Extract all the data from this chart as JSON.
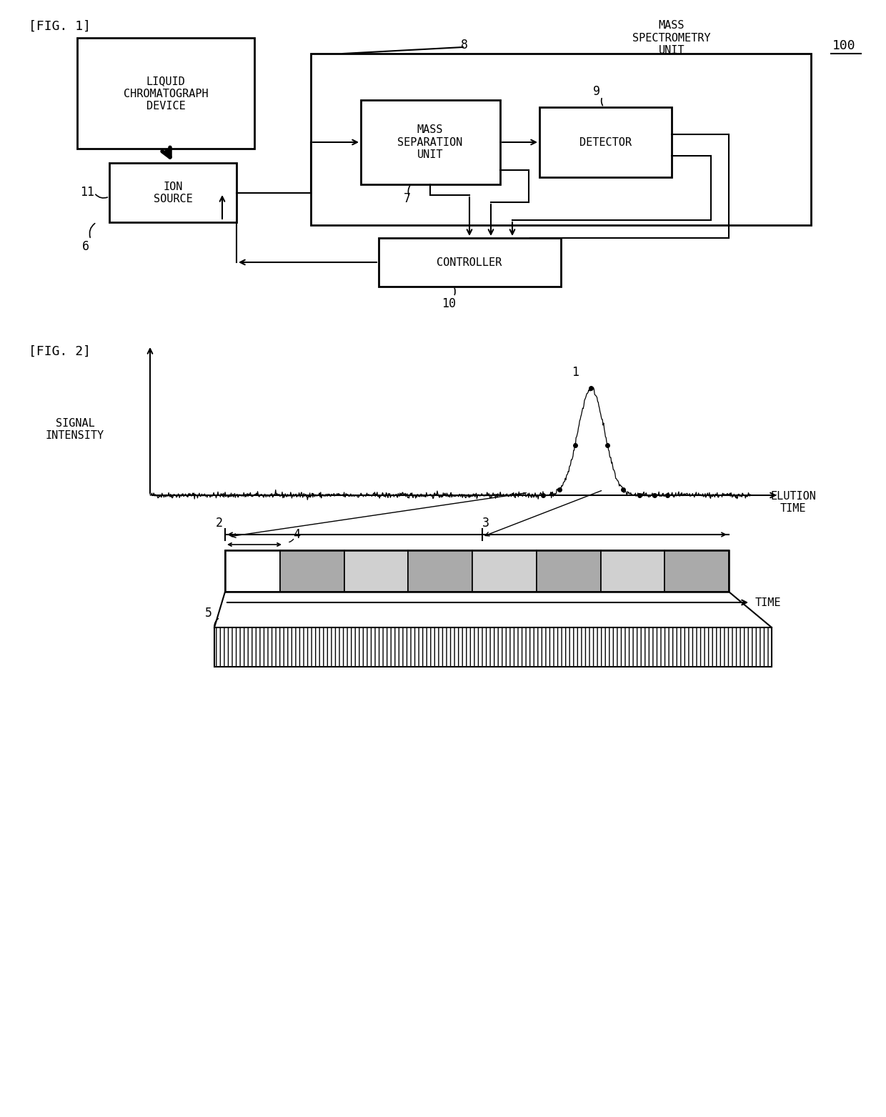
{
  "fig1_label": "[FIG. 1]",
  "fig2_label": "[FIG. 2]",
  "bg_color": "#ffffff",
  "label_100": "100",
  "label_8": "8",
  "label_9": "9",
  "label_6": "6",
  "label_7": "7",
  "label_10": "10",
  "label_11": "11",
  "box_lcd": "LIQUID\nCHROMATOGRAPH\nDEVICE",
  "box_ion": "ION\nSOURCE",
  "box_msu": "MASS\nSEPARATION\nUNIT",
  "box_det": "DETECTOR",
  "box_ctrl": "CONTROLLER",
  "label_msu_unit": "MASS\nSPECTROMETRY\nUNIT",
  "ylabel_fig2": "SIGNAL\nINTENSITY",
  "xlabel_fig2": "ELUTION\nTIME",
  "xlabel_lower": "TIME",
  "label_1": "1",
  "label_2": "2",
  "label_3": "3",
  "label_4": "4",
  "label_5": "5"
}
